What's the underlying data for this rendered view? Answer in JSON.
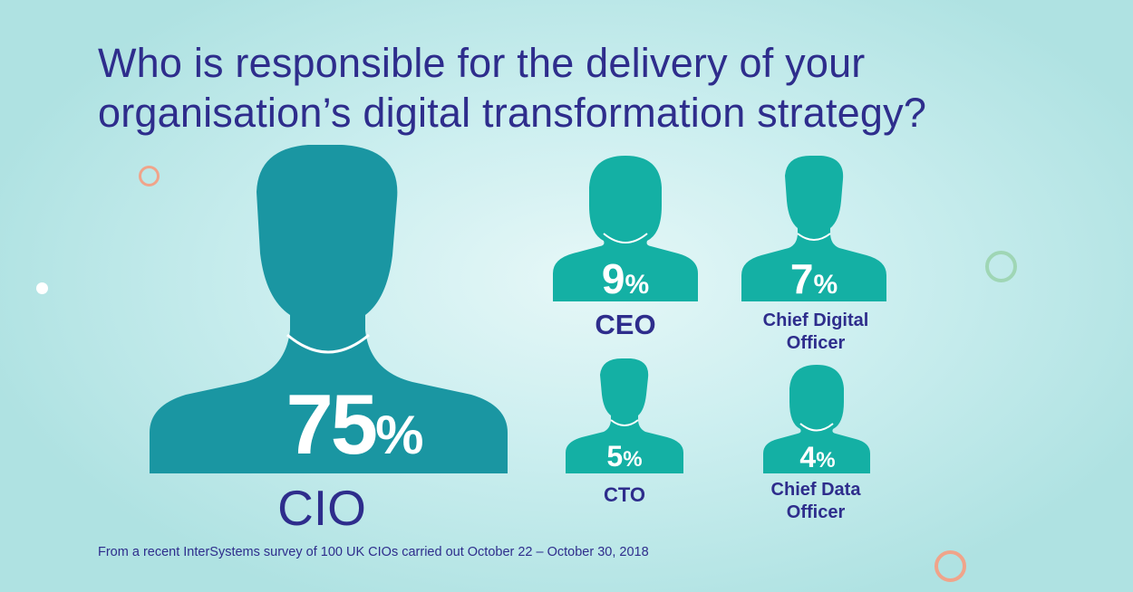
{
  "title": {
    "line1": "Who is responsible for the delivery of your",
    "line2": "organisation’s digital transformation strategy?"
  },
  "footnote": "From a recent InterSystems survey of 100 UK CIOs carried out October 22 – October 30, 2018",
  "colors": {
    "title": "#2e2d8c",
    "cio_silhouette": "#1a96a2",
    "small_silhouettes": "#14b0a4",
    "background": "#cdeff0",
    "ring_orange": "#f0a48a",
    "ring_green": "#9fd6b5"
  },
  "chart_data": {
    "type": "pictogram",
    "unit": "%",
    "items": [
      {
        "role": "CIO",
        "label_lines": [
          "CIO"
        ],
        "value": 75,
        "number": "75",
        "sign": "%",
        "icon": "male-silhouette-icon"
      },
      {
        "role": "CEO",
        "label_lines": [
          "CEO"
        ],
        "value": 9,
        "number": "9",
        "sign": "%",
        "icon": "female-silhouette-icon"
      },
      {
        "role": "Chief Digital Officer",
        "label_lines": [
          "Chief Digital",
          "Officer"
        ],
        "value": 7,
        "number": "7",
        "sign": "%",
        "icon": "male-silhouette-icon"
      },
      {
        "role": "CTO",
        "label_lines": [
          "CTO"
        ],
        "value": 5,
        "number": "5",
        "sign": "%",
        "icon": "male-silhouette-icon"
      },
      {
        "role": "Chief Data Officer",
        "label_lines": [
          "Chief Data",
          "Officer"
        ],
        "value": 4,
        "number": "4",
        "sign": "%",
        "icon": "female-silhouette-icon"
      }
    ]
  }
}
